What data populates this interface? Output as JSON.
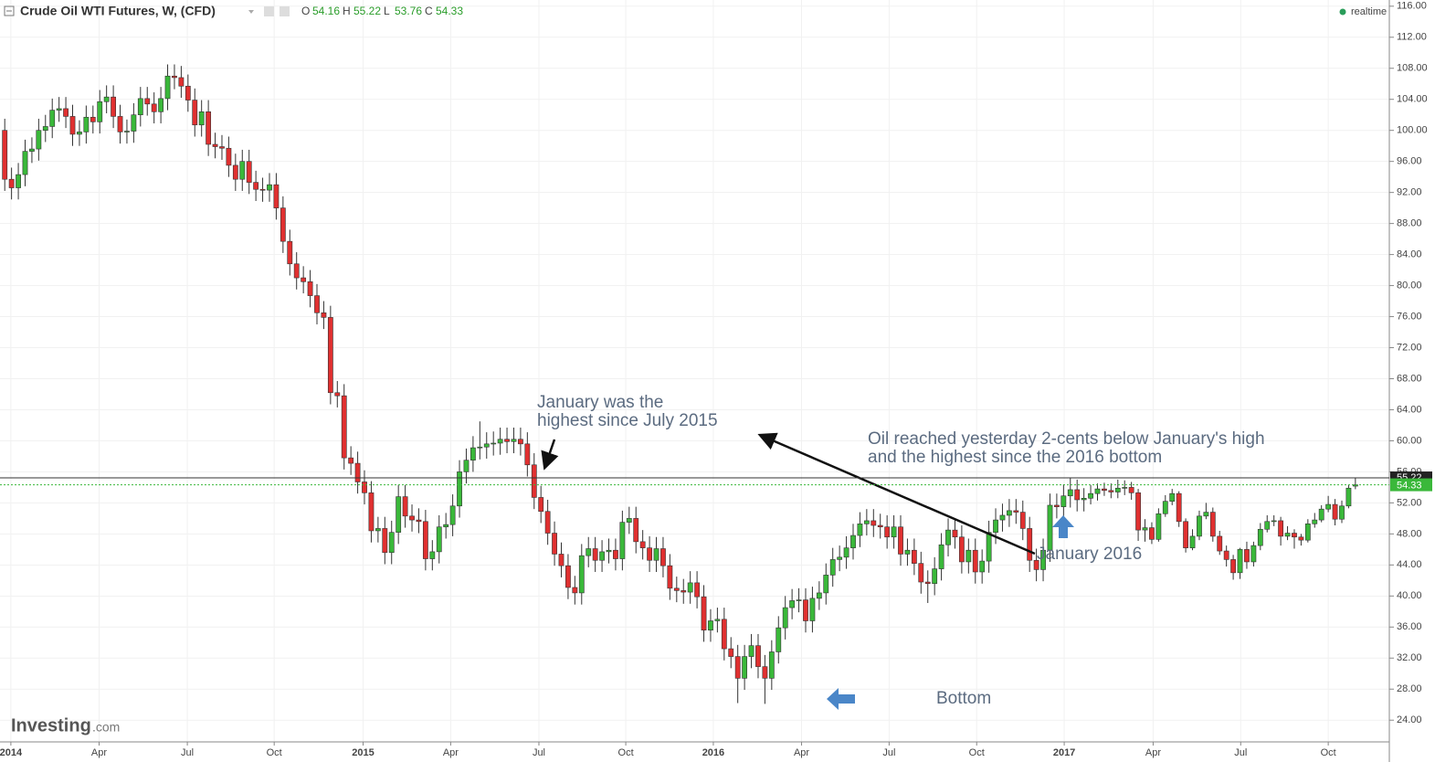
{
  "header": {
    "title": "Crude Oil WTI Futures, W, (CFD)",
    "ohlc_labels": [
      "O",
      "H",
      "L",
      "C"
    ],
    "status": "realtime"
  },
  "logo": {
    "name": "Investing",
    "suffix": ".com"
  },
  "chart_data": {
    "type": "candlestick",
    "up_color": "#3ab83a",
    "down_color": "#e03030",
    "candles": [
      [
        100.0,
        101.5,
        92.2,
        93.7
      ],
      [
        93.7,
        95.2,
        91.1,
        92.6
      ],
      [
        92.6,
        95.8,
        91.1,
        94.3
      ],
      [
        94.3,
        98.8,
        92.8,
        97.3
      ],
      [
        97.3,
        99.1,
        95.8,
        97.6
      ],
      [
        97.6,
        101.5,
        96.1,
        100.0
      ],
      [
        100.0,
        102.0,
        98.5,
        100.5
      ],
      [
        100.5,
        104.1,
        99.0,
        102.6
      ],
      [
        102.6,
        104.3,
        101.1,
        102.8
      ],
      [
        102.8,
        104.3,
        100.3,
        101.8
      ],
      [
        101.8,
        103.3,
        98.0,
        99.5
      ],
      [
        99.5,
        101.3,
        98.0,
        99.8
      ],
      [
        99.8,
        103.2,
        98.3,
        101.7
      ],
      [
        101.7,
        103.2,
        99.6,
        101.1
      ],
      [
        101.1,
        105.2,
        99.6,
        103.7
      ],
      [
        103.7,
        105.8,
        102.2,
        104.3
      ],
      [
        104.3,
        105.8,
        100.3,
        101.8
      ],
      [
        101.8,
        103.3,
        98.3,
        99.8
      ],
      [
        99.8,
        101.4,
        98.3,
        99.9
      ],
      [
        99.9,
        103.5,
        98.4,
        102.0
      ],
      [
        102.0,
        105.6,
        100.5,
        104.1
      ],
      [
        104.1,
        105.6,
        101.9,
        103.4
      ],
      [
        103.4,
        104.9,
        100.9,
        102.4
      ],
      [
        102.4,
        105.6,
        100.9,
        104.1
      ],
      [
        104.1,
        108.5,
        102.6,
        107.0
      ],
      [
        107.0,
        108.5,
        105.3,
        106.8
      ],
      [
        106.8,
        108.3,
        104.2,
        105.7
      ],
      [
        105.7,
        107.2,
        102.4,
        103.9
      ],
      [
        103.9,
        105.4,
        99.2,
        100.7
      ],
      [
        100.7,
        103.9,
        99.2,
        102.4
      ],
      [
        102.4,
        103.9,
        96.7,
        98.2
      ],
      [
        98.2,
        99.7,
        96.4,
        97.9
      ],
      [
        97.9,
        99.4,
        96.2,
        97.7
      ],
      [
        97.7,
        99.2,
        94.0,
        95.5
      ],
      [
        95.5,
        97.0,
        92.2,
        93.7
      ],
      [
        93.7,
        97.5,
        92.2,
        96.0
      ],
      [
        96.0,
        97.5,
        91.8,
        93.3
      ],
      [
        93.3,
        94.8,
        90.9,
        92.4
      ],
      [
        92.4,
        93.9,
        90.8,
        92.3
      ],
      [
        92.3,
        94.5,
        90.8,
        93.0
      ],
      [
        93.0,
        94.5,
        88.5,
        90.0
      ],
      [
        90.0,
        91.5,
        84.2,
        85.7
      ],
      [
        85.7,
        87.2,
        81.3,
        82.8
      ],
      [
        82.8,
        84.3,
        79.5,
        81.0
      ],
      [
        81.0,
        82.5,
        79.0,
        80.5
      ],
      [
        80.5,
        82.0,
        77.2,
        78.7
      ],
      [
        78.7,
        80.2,
        75.0,
        76.5
      ],
      [
        76.5,
        78.0,
        74.4,
        75.9
      ],
      [
        75.9,
        77.4,
        64.7,
        66.2
      ],
      [
        66.2,
        67.7,
        64.3,
        65.8
      ],
      [
        65.8,
        67.3,
        56.3,
        57.8
      ],
      [
        57.8,
        59.3,
        55.6,
        57.1
      ],
      [
        57.1,
        58.6,
        53.2,
        54.7
      ],
      [
        54.7,
        56.2,
        51.8,
        53.3
      ],
      [
        53.3,
        54.8,
        46.9,
        48.4
      ],
      [
        48.4,
        50.2,
        46.9,
        48.7
      ],
      [
        48.7,
        50.2,
        44.1,
        45.6
      ],
      [
        45.6,
        49.7,
        44.1,
        48.2
      ],
      [
        48.2,
        54.3,
        46.7,
        52.8
      ],
      [
        52.8,
        54.3,
        48.8,
        50.3
      ],
      [
        50.3,
        51.8,
        48.3,
        49.8
      ],
      [
        49.8,
        51.3,
        48.1,
        49.6
      ],
      [
        49.6,
        51.1,
        43.3,
        44.8
      ],
      [
        44.8,
        47.2,
        43.3,
        45.7
      ],
      [
        45.7,
        50.4,
        44.2,
        48.9
      ],
      [
        48.9,
        50.7,
        47.4,
        49.2
      ],
      [
        49.2,
        53.1,
        47.7,
        51.6
      ],
      [
        51.6,
        57.5,
        50.1,
        56.0
      ],
      [
        56.0,
        59.0,
        54.5,
        57.5
      ],
      [
        57.5,
        60.6,
        56.0,
        59.1
      ],
      [
        59.1,
        62.5,
        57.6,
        59.2
      ],
      [
        59.2,
        61.1,
        57.7,
        59.6
      ],
      [
        59.6,
        61.2,
        58.1,
        59.7
      ],
      [
        59.7,
        61.7,
        58.2,
        60.2
      ],
      [
        60.2,
        61.7,
        58.4,
        59.9
      ],
      [
        59.9,
        61.7,
        58.4,
        60.2
      ],
      [
        60.2,
        61.7,
        58.1,
        59.6
      ],
      [
        59.6,
        61.1,
        55.4,
        56.9
      ],
      [
        56.9,
        58.4,
        51.2,
        52.7
      ],
      [
        52.7,
        54.2,
        49.4,
        50.9
      ],
      [
        50.9,
        52.4,
        46.6,
        48.1
      ],
      [
        48.1,
        49.6,
        43.9,
        45.4
      ],
      [
        45.4,
        46.9,
        42.4,
        43.9
      ],
      [
        43.9,
        45.4,
        39.6,
        41.1
      ],
      [
        41.1,
        42.6,
        38.9,
        40.4
      ],
      [
        40.4,
        46.7,
        38.9,
        45.2
      ],
      [
        45.2,
        47.6,
        43.7,
        46.1
      ],
      [
        46.1,
        47.6,
        43.1,
        44.6
      ],
      [
        44.6,
        47.2,
        43.1,
        45.7
      ],
      [
        45.7,
        47.4,
        44.2,
        45.9
      ],
      [
        45.9,
        47.4,
        43.3,
        44.8
      ],
      [
        44.8,
        51.0,
        43.3,
        49.5
      ],
      [
        49.5,
        51.5,
        48.0,
        50.0
      ],
      [
        50.0,
        51.5,
        45.5,
        47.0
      ],
      [
        47.0,
        48.5,
        44.7,
        46.2
      ],
      [
        46.2,
        47.7,
        43.1,
        44.6
      ],
      [
        44.6,
        47.6,
        43.1,
        46.1
      ],
      [
        46.1,
        47.6,
        42.4,
        43.9
      ],
      [
        43.9,
        45.4,
        39.5,
        41.0
      ],
      [
        41.0,
        42.5,
        39.2,
        40.7
      ],
      [
        40.7,
        42.2,
        39.0,
        40.5
      ],
      [
        40.5,
        43.2,
        39.0,
        41.7
      ],
      [
        41.7,
        43.2,
        38.4,
        39.9
      ],
      [
        39.9,
        41.4,
        34.1,
        35.6
      ],
      [
        35.6,
        38.3,
        34.1,
        36.8
      ],
      [
        36.8,
        38.5,
        35.3,
        37.0
      ],
      [
        37.0,
        38.5,
        31.7,
        33.2
      ],
      [
        33.2,
        34.7,
        30.7,
        32.2
      ],
      [
        32.2,
        33.7,
        26.2,
        29.4
      ],
      [
        29.4,
        33.7,
        27.9,
        32.2
      ],
      [
        32.2,
        35.1,
        30.7,
        33.6
      ],
      [
        33.6,
        35.1,
        29.4,
        30.9
      ],
      [
        30.9,
        32.4,
        26.1,
        29.4
      ],
      [
        29.4,
        34.3,
        27.9,
        32.8
      ],
      [
        32.8,
        37.4,
        31.3,
        35.9
      ],
      [
        35.9,
        40.0,
        34.4,
        38.5
      ],
      [
        38.5,
        40.9,
        37.0,
        39.4
      ],
      [
        39.4,
        41.0,
        37.9,
        39.5
      ],
      [
        39.5,
        41.0,
        35.3,
        36.8
      ],
      [
        36.8,
        41.2,
        35.3,
        39.7
      ],
      [
        39.7,
        41.9,
        38.2,
        40.4
      ],
      [
        40.4,
        44.2,
        38.9,
        42.7
      ],
      [
        42.7,
        46.2,
        41.2,
        44.7
      ],
      [
        44.7,
        46.5,
        43.2,
        45.0
      ],
      [
        45.0,
        47.7,
        43.5,
        46.2
      ],
      [
        46.2,
        49.3,
        44.7,
        47.8
      ],
      [
        47.8,
        50.8,
        46.3,
        49.3
      ],
      [
        49.3,
        51.2,
        47.8,
        49.7
      ],
      [
        49.7,
        51.2,
        47.6,
        49.1
      ],
      [
        49.1,
        50.6,
        47.4,
        48.9
      ],
      [
        48.9,
        50.4,
        46.1,
        47.6
      ],
      [
        47.6,
        50.4,
        46.1,
        48.9
      ],
      [
        48.9,
        50.4,
        43.9,
        45.4
      ],
      [
        45.4,
        47.4,
        43.9,
        45.9
      ],
      [
        45.9,
        47.4,
        42.7,
        44.2
      ],
      [
        44.2,
        45.7,
        40.3,
        41.8
      ],
      [
        41.8,
        43.3,
        39.1,
        41.6
      ],
      [
        41.6,
        45.0,
        40.1,
        43.5
      ],
      [
        43.5,
        48.1,
        42.0,
        46.6
      ],
      [
        46.6,
        50.0,
        45.1,
        48.5
      ],
      [
        48.5,
        50.0,
        46.1,
        47.6
      ],
      [
        47.6,
        49.1,
        42.9,
        44.4
      ],
      [
        44.4,
        47.4,
        42.9,
        45.9
      ],
      [
        45.9,
        47.4,
        41.6,
        43.1
      ],
      [
        43.1,
        46.0,
        41.6,
        44.5
      ],
      [
        44.5,
        49.7,
        43.0,
        48.2
      ],
      [
        48.2,
        51.3,
        46.7,
        49.8
      ],
      [
        49.8,
        51.9,
        48.3,
        50.4
      ],
      [
        50.4,
        52.5,
        48.9,
        51.0
      ],
      [
        51.0,
        52.5,
        49.3,
        50.8
      ],
      [
        50.8,
        52.3,
        47.2,
        48.7
      ],
      [
        48.7,
        50.2,
        43.1,
        44.6
      ],
      [
        44.6,
        46.1,
        41.9,
        43.4
      ],
      [
        43.4,
        47.4,
        41.9,
        45.9
      ],
      [
        45.9,
        53.2,
        44.4,
        51.7
      ],
      [
        51.7,
        53.2,
        50.0,
        51.5
      ],
      [
        51.5,
        54.4,
        50.0,
        52.9
      ],
      [
        52.9,
        55.2,
        51.4,
        53.7
      ],
      [
        53.7,
        55.0,
        50.9,
        52.4
      ],
      [
        52.4,
        53.9,
        50.9,
        52.6
      ],
      [
        52.6,
        54.3,
        51.8,
        53.2
      ],
      [
        53.2,
        54.5,
        52.3,
        53.8
      ],
      [
        53.8,
        54.6,
        52.9,
        53.6
      ],
      [
        53.6,
        54.5,
        52.6,
        53.4
      ],
      [
        53.4,
        55.0,
        52.6,
        53.9
      ],
      [
        53.9,
        54.9,
        53.0,
        54.0
      ],
      [
        54.0,
        54.7,
        52.4,
        53.3
      ],
      [
        53.3,
        53.8,
        47.1,
        48.5
      ],
      [
        48.5,
        49.9,
        47.0,
        48.8
      ],
      [
        48.8,
        49.5,
        46.7,
        47.3
      ],
      [
        47.3,
        51.3,
        47.0,
        50.6
      ],
      [
        50.6,
        53.0,
        50.2,
        52.2
      ],
      [
        52.2,
        53.8,
        51.7,
        53.2
      ],
      [
        53.2,
        53.5,
        48.9,
        49.6
      ],
      [
        49.6,
        50.0,
        45.6,
        46.2
      ],
      [
        46.2,
        48.6,
        45.9,
        47.7
      ],
      [
        47.7,
        51.0,
        47.2,
        50.3
      ],
      [
        50.3,
        52.0,
        49.9,
        50.8
      ],
      [
        50.8,
        51.4,
        47.0,
        47.7
      ],
      [
        47.7,
        48.4,
        45.3,
        45.8
      ],
      [
        45.8,
        46.5,
        43.8,
        44.7
      ],
      [
        44.7,
        45.3,
        42.1,
        43.0
      ],
      [
        43.0,
        46.2,
        42.2,
        46.0
      ],
      [
        46.0,
        47.0,
        43.5,
        44.4
      ],
      [
        44.4,
        47.0,
        43.8,
        46.5
      ],
      [
        46.5,
        49.4,
        45.9,
        48.6
      ],
      [
        48.6,
        50.4,
        48.2,
        49.6
      ],
      [
        49.6,
        50.4,
        49.0,
        49.7
      ],
      [
        49.7,
        50.2,
        46.5,
        47.7
      ],
      [
        47.7,
        49.0,
        47.2,
        48.1
      ],
      [
        48.1,
        48.6,
        46.1,
        47.6
      ],
      [
        47.6,
        48.0,
        46.5,
        47.2
      ],
      [
        47.2,
        49.9,
        46.9,
        49.3
      ],
      [
        49.3,
        50.7,
        48.8,
        49.8
      ],
      [
        49.8,
        51.7,
        49.5,
        51.2
      ],
      [
        51.2,
        52.9,
        50.8,
        51.8
      ],
      [
        51.8,
        52.5,
        49.1,
        49.9
      ],
      [
        49.9,
        52.3,
        49.4,
        51.6
      ],
      [
        51.6,
        54.3,
        51.3,
        53.9
      ],
      [
        54.16,
        55.22,
        53.76,
        54.33
      ]
    ],
    "xlim": [
      -0.7,
      204
    ],
    "xticks": [
      {
        "value": 0.9,
        "label": "2014"
      },
      {
        "value": 13.9,
        "label": "Apr"
      },
      {
        "value": 26.9,
        "label": "Jul"
      },
      {
        "value": 39.7,
        "label": "Oct"
      },
      {
        "value": 52.8,
        "label": "2015"
      },
      {
        "value": 65.7,
        "label": "Apr"
      },
      {
        "value": 78.7,
        "label": "Jul"
      },
      {
        "value": 91.5,
        "label": "Oct"
      },
      {
        "value": 104.4,
        "label": "2016"
      },
      {
        "value": 117.4,
        "label": "Apr"
      },
      {
        "value": 130.3,
        "label": "Jul"
      },
      {
        "value": 143.2,
        "label": "Oct"
      },
      {
        "value": 156.1,
        "label": "2017"
      },
      {
        "value": 169.2,
        "label": "Apr"
      },
      {
        "value": 182.1,
        "label": "Jul"
      },
      {
        "value": 195.0,
        "label": "Oct"
      }
    ],
    "ylim": [
      21.2,
      116.8
    ],
    "yticks": [
      {
        "value": 24,
        "label": "24.00"
      },
      {
        "value": 28,
        "label": "28.00"
      },
      {
        "value": 32,
        "label": "32.00"
      },
      {
        "value": 36,
        "label": "36.00"
      },
      {
        "value": 40,
        "label": "40.00"
      },
      {
        "value": 44,
        "label": "44.00"
      },
      {
        "value": 48,
        "label": "48.00"
      },
      {
        "value": 52,
        "label": "52.00"
      },
      {
        "value": 56,
        "label": "56.00"
      },
      {
        "value": 60,
        "label": "60.00"
      },
      {
        "value": 64,
        "label": "64.00"
      },
      {
        "value": 68,
        "label": "68.00"
      },
      {
        "value": 72,
        "label": "72.00"
      },
      {
        "value": 76,
        "label": "76.00"
      },
      {
        "value": 80,
        "label": "80.00"
      },
      {
        "value": 84,
        "label": "84.00"
      },
      {
        "value": 88,
        "label": "88.00"
      },
      {
        "value": 92,
        "label": "92.00"
      },
      {
        "value": 96,
        "label": "96.00"
      },
      {
        "value": 100,
        "label": "100.00"
      },
      {
        "value": 104,
        "label": "104.00"
      },
      {
        "value": 108,
        "label": "108.00"
      },
      {
        "value": 112,
        "label": "112.00"
      },
      {
        "value": 116,
        "label": "116.00"
      }
    ],
    "grid": true,
    "annotations": [
      "January was the",
      "highest since July 2015",
      "Oil reached yesterday 2-cents below January's high",
      "and the highest since the 2016 bottom",
      "January 2016",
      "Bottom"
    ]
  }
}
